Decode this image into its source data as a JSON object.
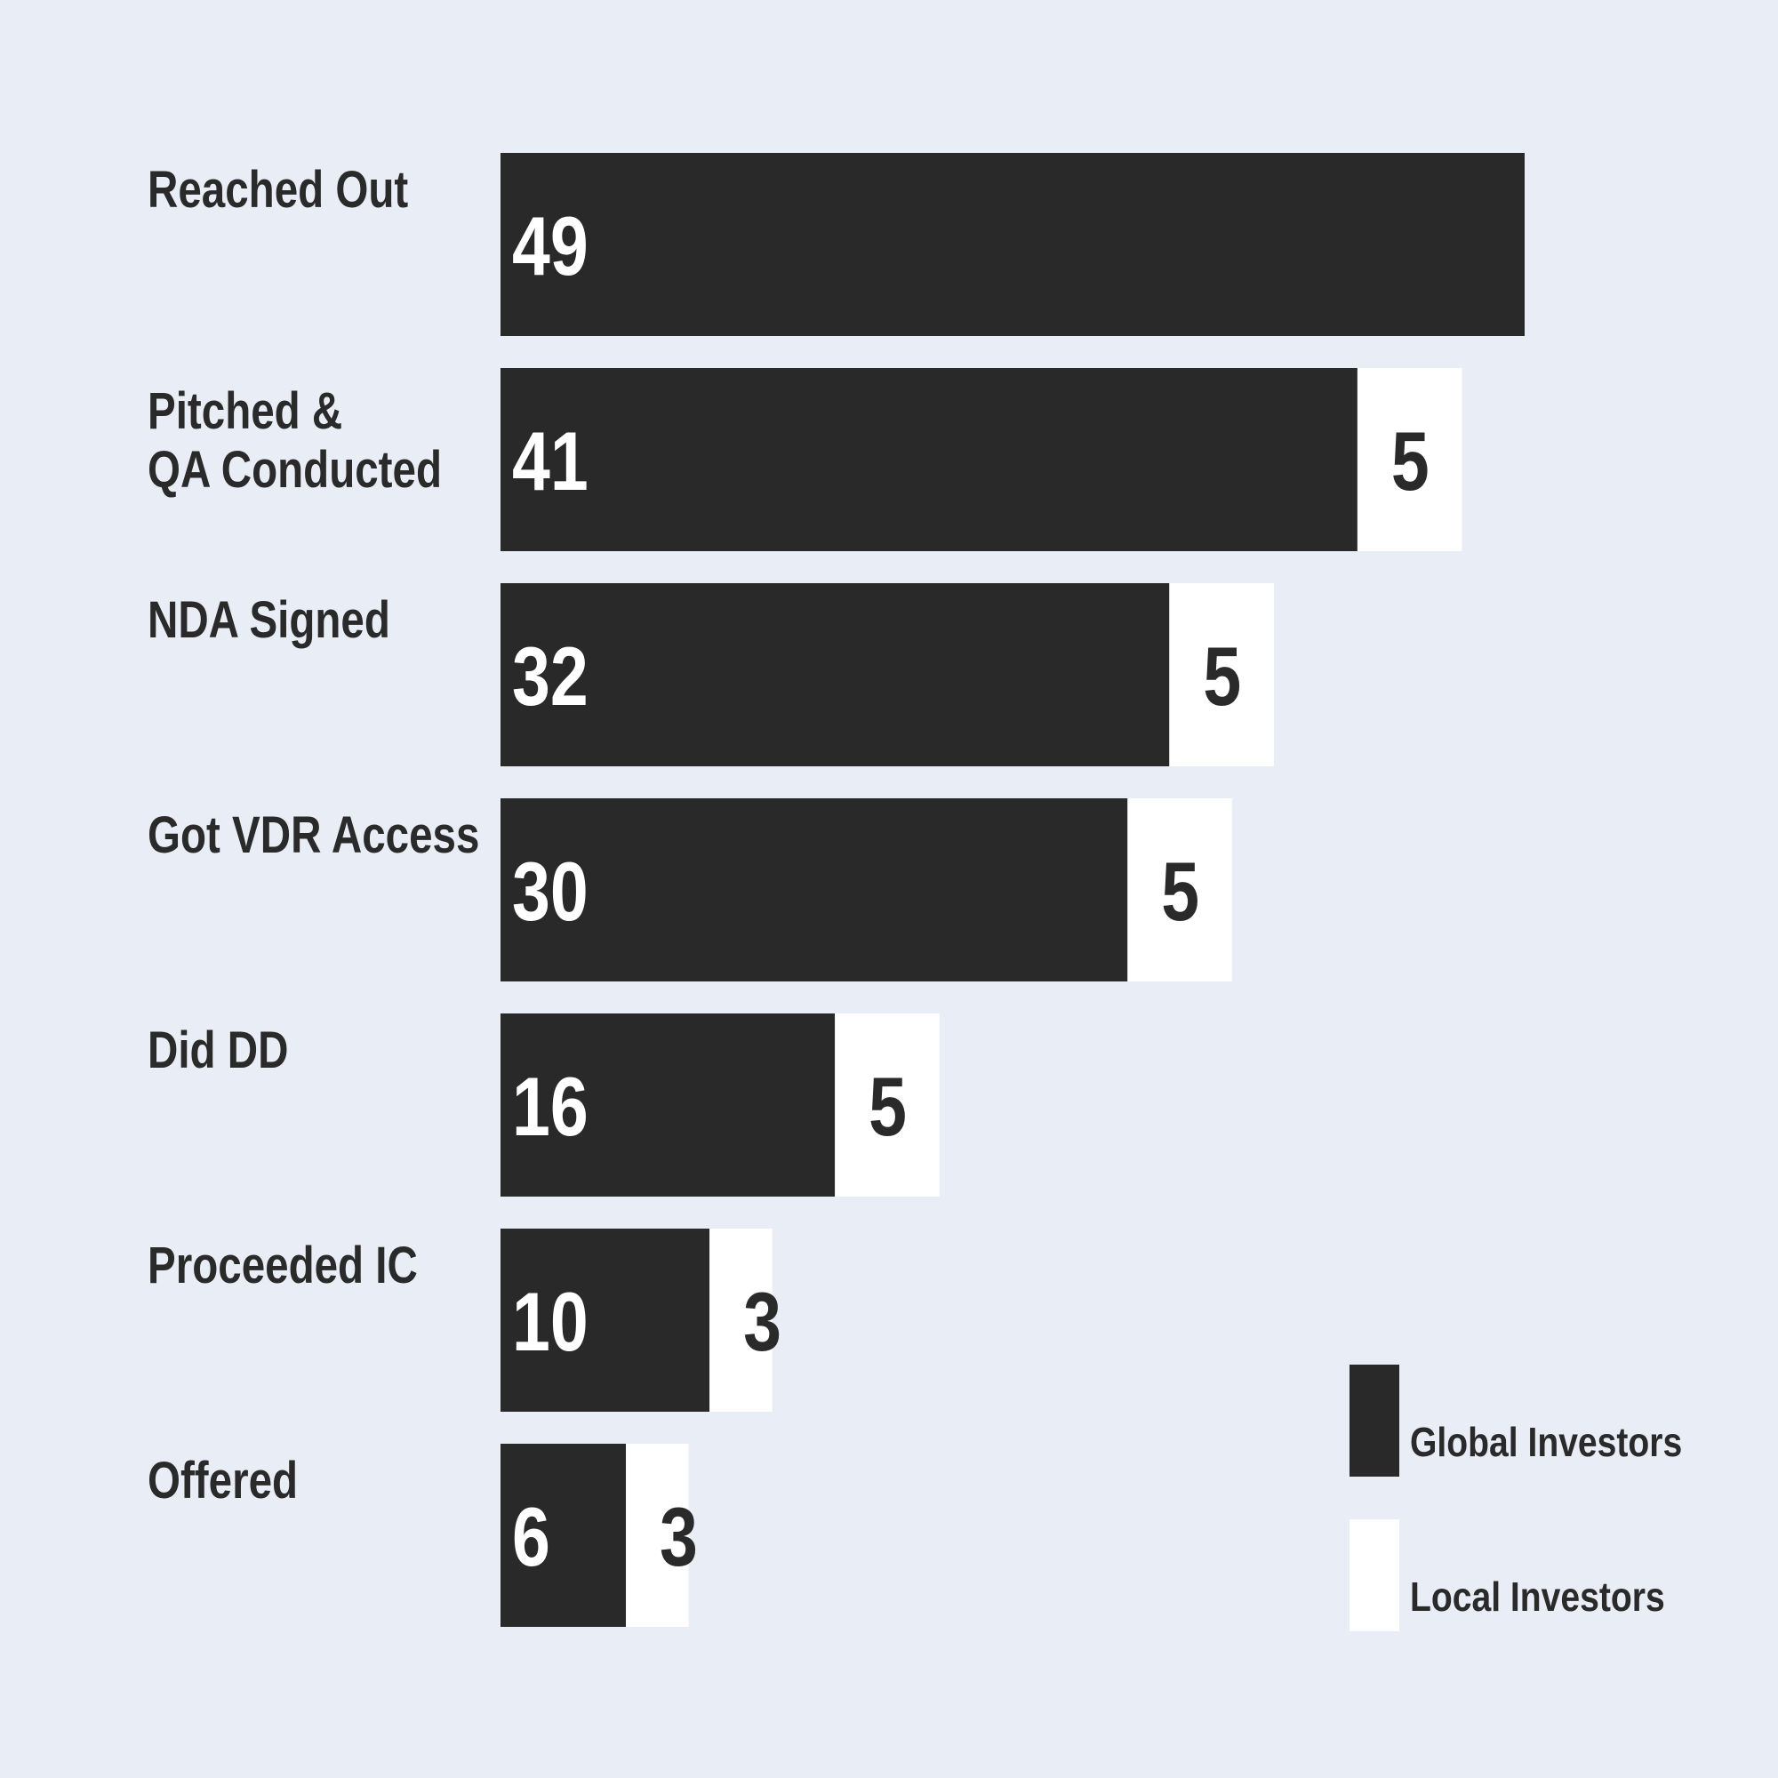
{
  "chart_data": {
    "type": "bar",
    "orientation": "horizontal",
    "stacked": true,
    "categories": [
      [
        "Reached Out"
      ],
      [
        "Pitched &",
        "QA Conducted"
      ],
      [
        "NDA Signed"
      ],
      [
        "Got VDR Access"
      ],
      [
        "Did DD"
      ],
      [
        "Proceeded IC"
      ],
      [
        "Offered"
      ]
    ],
    "series": [
      {
        "name": "Global Investors",
        "color": "#292929",
        "label_color": "#ffffff",
        "values": [
          49,
          41,
          32,
          30,
          16,
          10,
          6
        ],
        "labels": [
          "49",
          "41",
          "32",
          "30",
          "16",
          "10",
          "6"
        ]
      },
      {
        "name": "Local Investors",
        "color": "#ffffff",
        "label_color": "#2a2a2a",
        "values": [
          0,
          5,
          5,
          5,
          5,
          3,
          3
        ],
        "labels": [
          "",
          "5",
          "5",
          "5",
          "5",
          "3",
          "3"
        ]
      }
    ],
    "title": "",
    "xlabel": "",
    "ylabel": "",
    "xlim": [
      0,
      49
    ],
    "grid": false,
    "legend_position": "bottom-right"
  }
}
